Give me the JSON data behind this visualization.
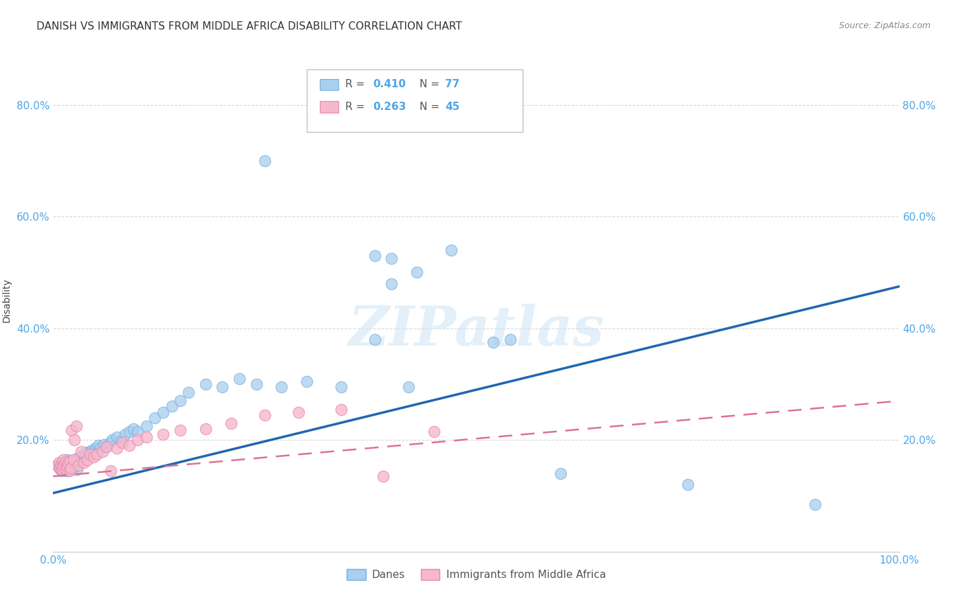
{
  "title": "DANISH VS IMMIGRANTS FROM MIDDLE AFRICA DISABILITY CORRELATION CHART",
  "source": "Source: ZipAtlas.com",
  "ylabel": "Disability",
  "xlim": [
    0.0,
    1.0
  ],
  "ylim": [
    0.0,
    0.9
  ],
  "x_ticks": [
    0.0,
    0.2,
    0.4,
    0.6,
    0.8,
    1.0
  ],
  "x_tick_labels": [
    "0.0%",
    "",
    "",
    "",
    "",
    "100.0%"
  ],
  "y_ticks": [
    0.0,
    0.2,
    0.4,
    0.6,
    0.8
  ],
  "y_tick_labels": [
    "",
    "20.0%",
    "40.0%",
    "60.0%",
    "80.0%"
  ],
  "danes_color": "#a8cef0",
  "danes_edge_color": "#7aaedc",
  "danes_line_color": "#2166b0",
  "immigrants_color": "#f5b8cc",
  "immigrants_edge_color": "#e889aa",
  "immigrants_line_color": "#e07090",
  "legend_r_danes": "R = 0.410",
  "legend_n_danes": "N = 77",
  "legend_r_immigrants": "R = 0.263",
  "legend_n_immigrants": "N = 45",
  "watermark": "ZIPatlas",
  "danes_trend_start_y": 0.105,
  "danes_trend_end_y": 0.475,
  "immigrants_trend_start_y": 0.135,
  "immigrants_trend_end_y": 0.27,
  "danes_scatter_x": [
    0.005,
    0.007,
    0.008,
    0.009,
    0.01,
    0.01,
    0.01,
    0.011,
    0.012,
    0.012,
    0.013,
    0.013,
    0.014,
    0.014,
    0.015,
    0.015,
    0.016,
    0.016,
    0.017,
    0.017,
    0.018,
    0.018,
    0.019,
    0.02,
    0.02,
    0.021,
    0.022,
    0.023,
    0.024,
    0.025,
    0.026,
    0.027,
    0.028,
    0.03,
    0.031,
    0.033,
    0.035,
    0.036,
    0.038,
    0.04,
    0.042,
    0.044,
    0.046,
    0.048,
    0.05,
    0.053,
    0.056,
    0.06,
    0.063,
    0.067,
    0.07,
    0.075,
    0.08,
    0.085,
    0.09,
    0.095,
    0.1,
    0.11,
    0.12,
    0.13,
    0.14,
    0.15,
    0.16,
    0.18,
    0.2,
    0.22,
    0.24,
    0.27,
    0.3,
    0.34,
    0.38,
    0.42,
    0.47,
    0.54,
    0.6,
    0.75,
    0.9
  ],
  "danes_scatter_y": [
    0.155,
    0.15,
    0.155,
    0.148,
    0.152,
    0.158,
    0.145,
    0.155,
    0.15,
    0.16,
    0.148,
    0.155,
    0.152,
    0.158,
    0.145,
    0.162,
    0.15,
    0.155,
    0.148,
    0.165,
    0.152,
    0.145,
    0.155,
    0.158,
    0.162,
    0.15,
    0.155,
    0.148,
    0.152,
    0.165,
    0.158,
    0.16,
    0.148,
    0.165,
    0.17,
    0.162,
    0.168,
    0.175,
    0.172,
    0.178,
    0.175,
    0.18,
    0.182,
    0.178,
    0.185,
    0.19,
    0.185,
    0.192,
    0.188,
    0.195,
    0.2,
    0.205,
    0.198,
    0.21,
    0.215,
    0.22,
    0.215,
    0.225,
    0.24,
    0.25,
    0.26,
    0.27,
    0.285,
    0.3,
    0.295,
    0.31,
    0.3,
    0.295,
    0.305,
    0.295,
    0.38,
    0.295,
    0.54,
    0.38,
    0.14,
    0.12,
    0.085
  ],
  "danes_outliers_x": [
    0.25,
    0.38,
    0.4,
    0.43,
    0.4,
    0.52
  ],
  "danes_outliers_y": [
    0.7,
    0.53,
    0.525,
    0.5,
    0.48,
    0.375
  ],
  "immigrants_scatter_x": [
    0.005,
    0.007,
    0.008,
    0.009,
    0.01,
    0.01,
    0.011,
    0.012,
    0.013,
    0.014,
    0.015,
    0.016,
    0.017,
    0.018,
    0.019,
    0.02,
    0.021,
    0.022,
    0.024,
    0.025,
    0.027,
    0.03,
    0.033,
    0.036,
    0.04,
    0.044,
    0.048,
    0.052,
    0.058,
    0.063,
    0.068,
    0.075,
    0.082,
    0.09,
    0.1,
    0.11,
    0.13,
    0.15,
    0.18,
    0.21,
    0.25,
    0.29,
    0.34,
    0.39,
    0.45
  ],
  "immigrants_scatter_y": [
    0.155,
    0.16,
    0.15,
    0.155,
    0.148,
    0.158,
    0.152,
    0.165,
    0.155,
    0.16,
    0.148,
    0.155,
    0.152,
    0.158,
    0.145,
    0.162,
    0.15,
    0.218,
    0.165,
    0.2,
    0.225,
    0.155,
    0.18,
    0.16,
    0.165,
    0.175,
    0.17,
    0.175,
    0.18,
    0.188,
    0.145,
    0.185,
    0.195,
    0.19,
    0.2,
    0.205,
    0.21,
    0.218,
    0.22,
    0.23,
    0.245,
    0.25,
    0.255,
    0.135,
    0.215
  ],
  "background_color": "#ffffff",
  "grid_color": "#d8d8d8",
  "title_fontsize": 11,
  "axis_tick_color": "#4da6e8",
  "axis_tick_fontsize": 11
}
